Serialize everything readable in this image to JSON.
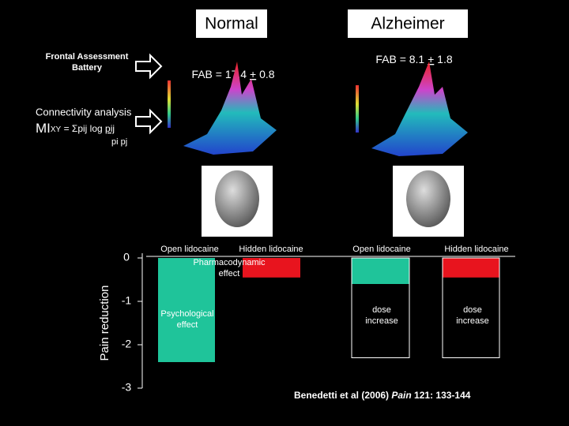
{
  "headers": [
    "Normal",
    "Alzheimer"
  ],
  "fab_label": [
    "Frontal Assessment",
    "Battery"
  ],
  "fab_scores": [
    {
      "prefix": "FAB = 17.4 ",
      "pm": "+",
      "suffix": " 0.8"
    },
    {
      "prefix": "FAB = 8.1 ",
      "pm": "+",
      "suffix": " 1.8"
    }
  ],
  "connectivity": {
    "label": "Connectivity analysis",
    "formula": {
      "mi": "MI",
      "sub": "XY",
      "eq": " = ",
      "sum": "Σpij log ",
      "num": "pij",
      "den": "pi pj"
    }
  },
  "citation": {
    "authors": "Benedetti et al (2006) ",
    "journal": "Pain",
    "ref": " 121: 133-144"
  },
  "chart_data": {
    "type": "bar",
    "y_label": "Pain reduction",
    "categories": [
      "Open lidocaine",
      "Hidden lidocaine",
      "Open lidocaine",
      "Hidden lidocaine"
    ],
    "values": [
      -2.4,
      -0.45,
      -0.6,
      -0.45
    ],
    "colors": [
      "#1fc49a",
      "#e8141e",
      "#1fc49a",
      "#e8141e"
    ],
    "outline": [
      null,
      null,
      -2.3,
      -2.3
    ],
    "ylim": [
      -3,
      0
    ],
    "yticks": [
      0,
      -1,
      -2,
      -3
    ],
    "annotations": [
      {
        "lines": [
          "Pharmacodynamic",
          "effect"
        ]
      },
      {
        "lines": [
          "Psychological",
          "effect"
        ]
      },
      {
        "lines": [
          "dose",
          "increase"
        ]
      },
      {
        "lines": [
          "dose",
          "increase"
        ]
      }
    ]
  }
}
